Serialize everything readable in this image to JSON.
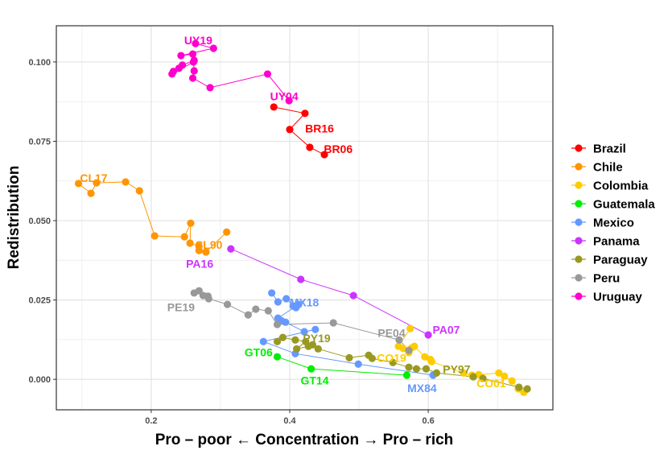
{
  "chart_data": {
    "type": "scatter",
    "subtype": "connected-scatter",
    "title": "",
    "xlabel": "Pro – poor ← Concentration → Pro – rich",
    "ylabel": "Redistribution",
    "xlim": [
      0.063,
      0.78
    ],
    "ylim": [
      -0.0096,
      0.1114
    ],
    "x_ticks": [
      0.2,
      0.4,
      0.6
    ],
    "x_tick_labels": [
      "0.2",
      "0.4",
      "0.6"
    ],
    "y_ticks": [
      0.0,
      0.025,
      0.05,
      0.075,
      0.1
    ],
    "y_tick_labels": [
      "0.000",
      "0.025",
      "0.050",
      "0.075",
      "0.100"
    ],
    "grid": true,
    "legend_position": "right",
    "series": [
      {
        "name": "Brazil",
        "color": "#FF0000",
        "points": [
          [
            0.377,
            0.0858
          ],
          [
            0.422,
            0.0838
          ],
          [
            0.4,
            0.0787
          ],
          [
            0.429,
            0.0731
          ],
          [
            0.45,
            0.0708
          ]
        ]
      },
      {
        "name": "Chile",
        "color": "#FF9500",
        "points": [
          [
            0.095,
            0.0617
          ],
          [
            0.113,
            0.0586
          ],
          [
            0.121,
            0.0619
          ],
          [
            0.163,
            0.0622
          ],
          [
            0.183,
            0.0594
          ],
          [
            0.205,
            0.0452
          ],
          [
            0.248,
            0.0449
          ],
          [
            0.257,
            0.0492
          ],
          [
            0.256,
            0.0429
          ],
          [
            0.269,
            0.0419
          ],
          [
            0.269,
            0.0406
          ],
          [
            0.279,
            0.0401
          ],
          [
            0.309,
            0.0464
          ]
        ]
      },
      {
        "name": "Colombia",
        "color": "#FFCC00",
        "points": [
          [
            0.574,
            0.016
          ],
          [
            0.557,
            0.0104
          ],
          [
            0.564,
            0.0097
          ],
          [
            0.572,
            0.0084
          ],
          [
            0.576,
            0.0099
          ],
          [
            0.58,
            0.0104
          ],
          [
            0.595,
            0.0071
          ],
          [
            0.603,
            0.0063
          ],
          [
            0.605,
            0.0056
          ],
          [
            0.651,
            0.002
          ],
          [
            0.663,
            0.0013
          ],
          [
            0.673,
            0.0015
          ],
          [
            0.702,
            0.002
          ],
          [
            0.71,
            0.001
          ],
          [
            0.721,
            -0.0005
          ],
          [
            0.73,
            -0.003
          ],
          [
            0.738,
            -0.0041
          ]
        ]
      },
      {
        "name": "Guatemala",
        "color": "#00EE00",
        "points": [
          [
            0.382,
            0.0071
          ],
          [
            0.431,
            0.0033
          ],
          [
            0.569,
            0.0013
          ]
        ]
      },
      {
        "name": "Mexico",
        "color": "#6699FF",
        "points": [
          [
            0.374,
            0.0272
          ],
          [
            0.383,
            0.0244
          ],
          [
            0.395,
            0.0254
          ],
          [
            0.405,
            0.0231
          ],
          [
            0.409,
            0.0226
          ],
          [
            0.413,
            0.0236
          ],
          [
            0.383,
            0.0193
          ],
          [
            0.388,
            0.0185
          ],
          [
            0.394,
            0.018
          ],
          [
            0.421,
            0.015
          ],
          [
            0.437,
            0.0157
          ],
          [
            0.362,
            0.0119
          ],
          [
            0.408,
            0.0081
          ],
          [
            0.499,
            0.0048
          ],
          [
            0.607,
            0.0013
          ]
        ]
      },
      {
        "name": "Panama",
        "color": "#CC33FF",
        "points": [
          [
            0.315,
            0.0411
          ],
          [
            0.416,
            0.0315
          ],
          [
            0.492,
            0.0264
          ],
          [
            0.6,
            0.014
          ]
        ]
      },
      {
        "name": "Paraguay",
        "color": "#999922",
        "points": [
          [
            0.382,
            0.0119
          ],
          [
            0.39,
            0.0132
          ],
          [
            0.408,
            0.0124
          ],
          [
            0.423,
            0.0119
          ],
          [
            0.41,
            0.0096
          ],
          [
            0.427,
            0.0104
          ],
          [
            0.433,
            0.0109
          ],
          [
            0.441,
            0.0096
          ],
          [
            0.486,
            0.0068
          ],
          [
            0.514,
            0.0076
          ],
          [
            0.519,
            0.0066
          ],
          [
            0.549,
            0.0053
          ],
          [
            0.572,
            0.0038
          ],
          [
            0.583,
            0.0033
          ],
          [
            0.597,
            0.0033
          ],
          [
            0.612,
            0.002
          ],
          [
            0.665,
            0.0008
          ],
          [
            0.679,
            0.0003
          ],
          [
            0.731,
            -0.0025
          ],
          [
            0.743,
            -0.003
          ]
        ]
      },
      {
        "name": "Peru",
        "color": "#999999",
        "points": [
          [
            0.262,
            0.0272
          ],
          [
            0.269,
            0.0279
          ],
          [
            0.275,
            0.0264
          ],
          [
            0.282,
            0.0262
          ],
          [
            0.283,
            0.0254
          ],
          [
            0.31,
            0.0236
          ],
          [
            0.34,
            0.0203
          ],
          [
            0.351,
            0.0221
          ],
          [
            0.369,
            0.0216
          ],
          [
            0.382,
            0.0173
          ],
          [
            0.463,
            0.0178
          ],
          [
            0.558,
            0.0124
          ],
          [
            0.572,
            0.0091
          ]
        ]
      },
      {
        "name": "Uruguay",
        "color": "#FF00CC",
        "points": [
          [
            0.264,
            0.1058
          ],
          [
            0.29,
            0.1043
          ],
          [
            0.243,
            0.102
          ],
          [
            0.26,
            0.1025
          ],
          [
            0.262,
            0.1005
          ],
          [
            0.245,
            0.099
          ],
          [
            0.24,
            0.098
          ],
          [
            0.232,
            0.097
          ],
          [
            0.23,
            0.0962
          ],
          [
            0.261,
            0.1
          ],
          [
            0.262,
            0.0972
          ],
          [
            0.26,
            0.0949
          ],
          [
            0.285,
            0.0919
          ],
          [
            0.368,
            0.0962
          ],
          [
            0.399,
            0.0878
          ]
        ]
      }
    ],
    "annotations": [
      {
        "text": "UY19",
        "series": "Uruguay",
        "x": 0.268,
        "y": 0.1068
      },
      {
        "text": "UY04",
        "series": "Uruguay",
        "x": 0.392,
        "y": 0.0892
      },
      {
        "text": "BR16",
        "series": "Brazil",
        "x": 0.443,
        "y": 0.079
      },
      {
        "text": "BR06",
        "series": "Brazil",
        "x": 0.47,
        "y": 0.0726
      },
      {
        "text": "CL17",
        "series": "Chile",
        "x": 0.117,
        "y": 0.0634
      },
      {
        "text": "CL90",
        "series": "Chile",
        "x": 0.283,
        "y": 0.0424
      },
      {
        "text": "PA16",
        "series": "Panama",
        "x": 0.27,
        "y": 0.0365
      },
      {
        "text": "PE19",
        "series": "Peru",
        "x": 0.243,
        "y": 0.0228
      },
      {
        "text": "MX18",
        "series": "Mexico",
        "x": 0.421,
        "y": 0.0243
      },
      {
        "text": "PY19",
        "series": "Paraguay",
        "x": 0.439,
        "y": 0.013
      },
      {
        "text": "PE04",
        "series": "Peru",
        "x": 0.547,
        "y": 0.0146
      },
      {
        "text": "PA07",
        "series": "Panama",
        "x": 0.626,
        "y": 0.0157
      },
      {
        "text": "GT06",
        "series": "Guatemala",
        "x": 0.355,
        "y": 0.0085
      },
      {
        "text": "CO19",
        "series": "Colombia",
        "x": 0.547,
        "y": 0.0067
      },
      {
        "text": "PY97",
        "series": "Paraguay",
        "x": 0.641,
        "y": 0.0032
      },
      {
        "text": "GT14",
        "series": "Guatemala",
        "x": 0.436,
        "y": -0.0003
      },
      {
        "text": "MX84",
        "series": "Mexico",
        "x": 0.591,
        "y": -0.0027
      },
      {
        "text": "CO01",
        "series": "Colombia",
        "x": 0.691,
        "y": -0.0012
      }
    ]
  }
}
